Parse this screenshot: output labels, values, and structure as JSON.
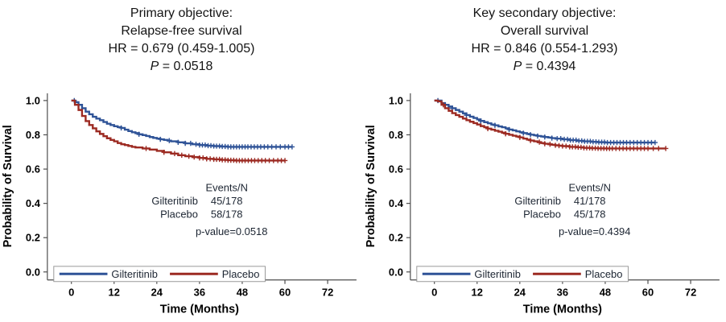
{
  "figure": {
    "background": "#ffffff"
  },
  "colors": {
    "gilteritinib": "#2f5397",
    "placebo": "#9c2a22",
    "axis": "#4d4d4d",
    "tick_label": "#000000",
    "annotation_text": "#1c2532",
    "legend_border": "#999999",
    "legend_fill": "#ffffff",
    "title_text": "#141414"
  },
  "chart_data": [
    {
      "type": "line",
      "subtype": "kaplan-meier-step",
      "title_lines": [
        "Primary objective:",
        "Relapse-free survival",
        "HR = 0.679 (0.459-1.005)"
      ],
      "p_label": "P",
      "p_rest": " = 0.0518",
      "xlabel": "Time (Months)",
      "ylabel": "Probability of Survival",
      "xlim": [
        0,
        78
      ],
      "ylim": [
        0,
        1
      ],
      "xticks": [
        0,
        12,
        24,
        36,
        48,
        60,
        72
      ],
      "yticks": [
        "0.0",
        "0.2",
        "0.4",
        "0.6",
        "0.8",
        "1.0"
      ],
      "grid": false,
      "legend_position": "bottom-inside",
      "legend": [
        "Gilteritinib",
        "Placebo"
      ],
      "annotation": {
        "header": "Events/N",
        "rows": [
          {
            "name": "Gilteritinib",
            "events_n": "45/178"
          },
          {
            "name": "Placebo",
            "events_n": "58/178"
          }
        ],
        "p_value_text": "p-value=0.0518"
      },
      "series": [
        {
          "name": "Gilteritinib",
          "color": "#2f5397",
          "steps": [
            [
              0,
              1.0
            ],
            [
              1,
              0.99
            ],
            [
              2,
              0.975
            ],
            [
              3,
              0.955
            ],
            [
              4,
              0.935
            ],
            [
              5,
              0.92
            ],
            [
              6,
              0.905
            ],
            [
              7,
              0.895
            ],
            [
              8,
              0.885
            ],
            [
              9,
              0.875
            ],
            [
              10,
              0.865
            ],
            [
              11,
              0.857
            ],
            [
              12,
              0.85
            ],
            [
              13,
              0.845
            ],
            [
              14,
              0.84
            ],
            [
              15,
              0.83
            ],
            [
              16,
              0.822
            ],
            [
              17,
              0.815
            ],
            [
              18,
              0.81
            ],
            [
              19,
              0.803
            ],
            [
              20,
              0.798
            ],
            [
              21,
              0.793
            ],
            [
              22,
              0.787
            ],
            [
              23,
              0.782
            ],
            [
              24,
              0.778
            ],
            [
              25,
              0.774
            ],
            [
              26,
              0.77
            ],
            [
              27,
              0.766
            ],
            [
              28,
              0.762
            ],
            [
              30,
              0.756
            ],
            [
              32,
              0.75
            ],
            [
              34,
              0.745
            ],
            [
              36,
              0.74
            ],
            [
              38,
              0.737
            ],
            [
              40,
              0.734
            ],
            [
              42,
              0.732
            ],
            [
              44,
              0.73
            ],
            [
              62,
              0.73
            ]
          ],
          "censor_times": [
            0.8,
            14,
            19,
            25,
            27.5,
            30,
            32,
            33.5,
            35,
            36,
            36.8,
            37.6,
            38.4,
            39.2,
            40,
            40.8,
            41.6,
            42.4,
            43.2,
            44,
            44.8,
            45.6,
            46.4,
            47.2,
            48,
            48.8,
            49.6,
            50.5,
            51.4,
            52.3,
            53.2,
            54.2,
            55.2,
            56.3,
            57.5,
            58.7,
            60,
            61,
            62
          ]
        },
        {
          "name": "Placebo",
          "color": "#9c2a22",
          "steps": [
            [
              0,
              1.0
            ],
            [
              1,
              0.975
            ],
            [
              2,
              0.945
            ],
            [
              3,
              0.91
            ],
            [
              4,
              0.88
            ],
            [
              5,
              0.857
            ],
            [
              6,
              0.838
            ],
            [
              7,
              0.82
            ],
            [
              8,
              0.805
            ],
            [
              9,
              0.792
            ],
            [
              10,
              0.78
            ],
            [
              11,
              0.77
            ],
            [
              12,
              0.762
            ],
            [
              13,
              0.752
            ],
            [
              14,
              0.745
            ],
            [
              15,
              0.74
            ],
            [
              16,
              0.735
            ],
            [
              17,
              0.73
            ],
            [
              18,
              0.726
            ],
            [
              20,
              0.72
            ],
            [
              22,
              0.714
            ],
            [
              24,
              0.706
            ],
            [
              26,
              0.698
            ],
            [
              28,
              0.69
            ],
            [
              30,
              0.681
            ],
            [
              32,
              0.675
            ],
            [
              34,
              0.67
            ],
            [
              36,
              0.665
            ],
            [
              38,
              0.66
            ],
            [
              40,
              0.657
            ],
            [
              42,
              0.654
            ],
            [
              44,
              0.652
            ],
            [
              46,
              0.65
            ],
            [
              60,
              0.65
            ]
          ],
          "censor_times": [
            21,
            26,
            29,
            31,
            33,
            34.5,
            36,
            37,
            38,
            39,
            40,
            40.8,
            41.6,
            42.4,
            43.2,
            44,
            44.8,
            45.6,
            46.4,
            47.2,
            48,
            48.8,
            49.7,
            50.6,
            51.5,
            52.5,
            53.5,
            54.5,
            55.6,
            56.8,
            58,
            59,
            60
          ]
        }
      ]
    },
    {
      "type": "line",
      "subtype": "kaplan-meier-step",
      "title_lines": [
        "Key secondary objective:",
        "Overall survival",
        "HR = 0.846 (0.554-1.293)"
      ],
      "p_label": "P",
      "p_rest": " = 0.4394",
      "xlabel": "Time (Months)",
      "ylabel": "Probability of Survival",
      "xlim": [
        0,
        78
      ],
      "ylim": [
        0,
        1
      ],
      "xticks": [
        0,
        12,
        24,
        36,
        48,
        60,
        72
      ],
      "yticks": [
        "0.0",
        "0.2",
        "0.4",
        "0.6",
        "0.8",
        "1.0"
      ],
      "grid": false,
      "legend_position": "bottom-inside",
      "legend": [
        "Gilteritinib",
        "Placebo"
      ],
      "annotation": {
        "header": "Events/N",
        "rows": [
          {
            "name": "Gilteritinib",
            "events_n": "41/178"
          },
          {
            "name": "Placebo",
            "events_n": "45/178"
          }
        ],
        "p_value_text": "p-value=0.4394"
      },
      "series": [
        {
          "name": "Gilteritinib",
          "color": "#2f5397",
          "steps": [
            [
              0,
              1.0
            ],
            [
              2,
              0.985
            ],
            [
              3,
              0.975
            ],
            [
              4,
              0.965
            ],
            [
              5,
              0.955
            ],
            [
              6,
              0.945
            ],
            [
              7,
              0.935
            ],
            [
              8,
              0.925
            ],
            [
              9,
              0.915
            ],
            [
              10,
              0.906
            ],
            [
              11,
              0.898
            ],
            [
              12,
              0.89
            ],
            [
              13,
              0.881
            ],
            [
              14,
              0.874
            ],
            [
              15,
              0.867
            ],
            [
              16,
              0.86
            ],
            [
              17,
              0.855
            ],
            [
              18,
              0.849
            ],
            [
              19,
              0.844
            ],
            [
              20,
              0.838
            ],
            [
              21,
              0.831
            ],
            [
              22,
              0.826
            ],
            [
              23,
              0.82
            ],
            [
              24,
              0.815
            ],
            [
              25,
              0.81
            ],
            [
              26,
              0.805
            ],
            [
              27,
              0.801
            ],
            [
              28,
              0.797
            ],
            [
              29,
              0.793
            ],
            [
              30,
              0.79
            ],
            [
              31,
              0.787
            ],
            [
              32,
              0.784
            ],
            [
              33,
              0.781
            ],
            [
              34,
              0.778
            ],
            [
              36,
              0.774
            ],
            [
              38,
              0.769
            ],
            [
              40,
              0.765
            ],
            [
              42,
              0.762
            ],
            [
              44,
              0.759
            ],
            [
              46,
              0.757
            ],
            [
              48,
              0.755
            ],
            [
              62,
              0.755
            ]
          ],
          "censor_times": [
            1,
            5,
            9,
            13,
            17,
            21,
            25,
            27,
            29,
            31,
            33,
            34.5,
            35.5,
            36.5,
            37.4,
            38.2,
            39,
            39.8,
            40.6,
            41.4,
            42.2,
            43,
            43.8,
            44.6,
            45.4,
            46.2,
            47,
            47.8,
            48.6,
            49.5,
            50.4,
            51.3,
            52.2,
            53.1,
            54,
            55,
            56,
            57,
            58,
            59,
            60,
            61,
            62
          ]
        },
        {
          "name": "Placebo",
          "color": "#9c2a22",
          "steps": [
            [
              0,
              1.0
            ],
            [
              1,
              0.995
            ],
            [
              2,
              0.975
            ],
            [
              3,
              0.955
            ],
            [
              4,
              0.94
            ],
            [
              5,
              0.926
            ],
            [
              6,
              0.915
            ],
            [
              7,
              0.905
            ],
            [
              8,
              0.895
            ],
            [
              9,
              0.885
            ],
            [
              10,
              0.876
            ],
            [
              11,
              0.868
            ],
            [
              12,
              0.86
            ],
            [
              13,
              0.851
            ],
            [
              14,
              0.844
            ],
            [
              15,
              0.836
            ],
            [
              16,
              0.83
            ],
            [
              17,
              0.824
            ],
            [
              18,
              0.818
            ],
            [
              19,
              0.812
            ],
            [
              20,
              0.806
            ],
            [
              21,
              0.8
            ],
            [
              22,
              0.795
            ],
            [
              23,
              0.79
            ],
            [
              24,
              0.785
            ],
            [
              25,
              0.778
            ],
            [
              26,
              0.772
            ],
            [
              27,
              0.767
            ],
            [
              28,
              0.762
            ],
            [
              29,
              0.757
            ],
            [
              30,
              0.752
            ],
            [
              31,
              0.748
            ],
            [
              32,
              0.745
            ],
            [
              33,
              0.742
            ],
            [
              34,
              0.739
            ],
            [
              35,
              0.737
            ],
            [
              36,
              0.734
            ],
            [
              38,
              0.73
            ],
            [
              40,
              0.727
            ],
            [
              42,
              0.724
            ],
            [
              44,
              0.722
            ],
            [
              46,
              0.721
            ],
            [
              48,
              0.72
            ],
            [
              65,
              0.72
            ]
          ],
          "censor_times": [
            2.5,
            15,
            20,
            24,
            27,
            29.5,
            31,
            32.5,
            34,
            35,
            36,
            37,
            38,
            38.8,
            39.6,
            40.4,
            41.2,
            42,
            42.8,
            43.6,
            44.4,
            45.2,
            46,
            46.8,
            47.6,
            48.4,
            49.2,
            50,
            51,
            52,
            53,
            54,
            55,
            56,
            57,
            58,
            59,
            60,
            61.5,
            63,
            65
          ]
        }
      ]
    }
  ]
}
